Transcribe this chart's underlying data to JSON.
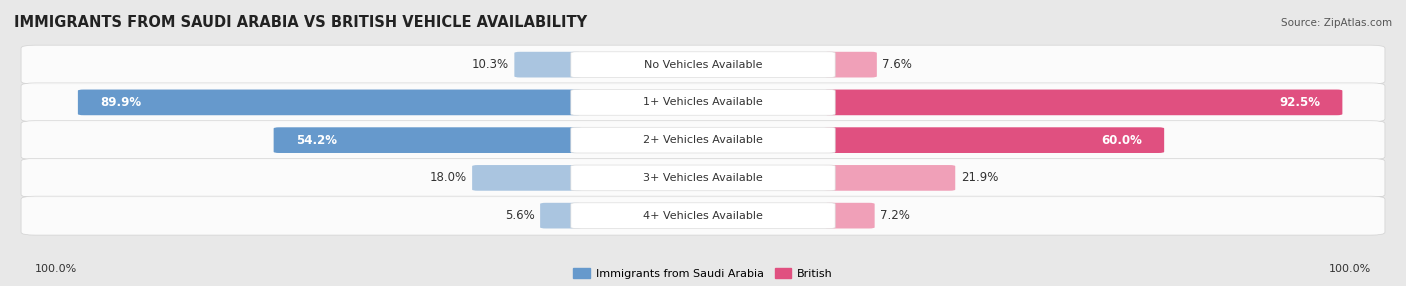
{
  "title": "IMMIGRANTS FROM SAUDI ARABIA VS BRITISH VEHICLE AVAILABILITY",
  "source": "Source: ZipAtlas.com",
  "categories": [
    "No Vehicles Available",
    "1+ Vehicles Available",
    "2+ Vehicles Available",
    "3+ Vehicles Available",
    "4+ Vehicles Available"
  ],
  "saudi_values": [
    10.3,
    89.9,
    54.2,
    18.0,
    5.6
  ],
  "british_values": [
    7.6,
    92.5,
    60.0,
    21.9,
    7.2
  ],
  "saudi_color_strong": "#6699cc",
  "saudi_color_light": "#aac5e0",
  "british_color_strong": "#e05080",
  "british_color_light": "#f0a0b8",
  "saudi_label": "Immigrants from Saudi Arabia",
  "british_label": "British",
  "max_value": 100.0,
  "background_color": "#e8e8e8",
  "row_bg_color": "#f5f5f5",
  "title_fontsize": 10.5,
  "value_fontsize": 8.5,
  "cat_fontsize": 8.0,
  "source_fontsize": 7.5
}
